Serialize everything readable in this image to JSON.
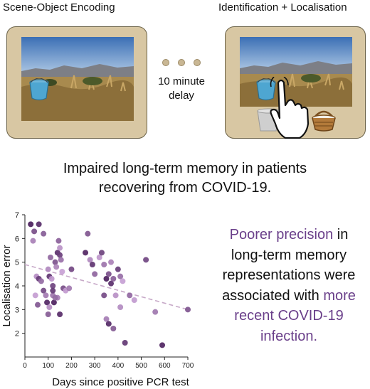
{
  "panels": {
    "left_title": "Scene-Object Encoding",
    "right_title": "Identification + Localisation",
    "delay_line1": "10 minute",
    "delay_line2": "delay"
  },
  "headline": {
    "line1": "Impaired long-term memory in patients",
    "line2": "recovering from COVID-19."
  },
  "summary": {
    "part1": "Poorer precision",
    "part2": " in long-term memory representations were associated with ",
    "part3": "more recent COVID-19 infection."
  },
  "icons": [
    "bucket-icon",
    "hand-pointer-icon",
    "basket-icon",
    "cup-icon"
  ],
  "colors": {
    "highlight": "#6a3f8a",
    "tablet": "#d8c7a3",
    "point_dark": "#4a1e5c",
    "point_light": "#c9a2d6",
    "trend": "#c7a9c8"
  },
  "chart_data": {
    "type": "scatter",
    "xlabel": "Days since positive PCR test",
    "ylabel": "Localisation error",
    "xlim": [
      0,
      700
    ],
    "ylim": [
      1,
      7
    ],
    "xticks": [
      0,
      100,
      200,
      300,
      400,
      500,
      600,
      700
    ],
    "yticks": [
      2,
      3,
      4,
      5,
      6,
      7
    ],
    "trendline": {
      "x": [
        0,
        700
      ],
      "y": [
        4.9,
        3.0
      ]
    },
    "points": [
      {
        "x": 25,
        "y": 6.6
      },
      {
        "x": 40,
        "y": 6.3
      },
      {
        "x": 35,
        "y": 5.9
      },
      {
        "x": 60,
        "y": 6.6
      },
      {
        "x": 80,
        "y": 6.2
      },
      {
        "x": 50,
        "y": 4.4
      },
      {
        "x": 60,
        "y": 4.3
      },
      {
        "x": 70,
        "y": 4.2
      },
      {
        "x": 45,
        "y": 3.6
      },
      {
        "x": 80,
        "y": 3.8
      },
      {
        "x": 90,
        "y": 3.6
      },
      {
        "x": 95,
        "y": 3.3
      },
      {
        "x": 55,
        "y": 3.2
      },
      {
        "x": 100,
        "y": 4.7
      },
      {
        "x": 105,
        "y": 4.4
      },
      {
        "x": 110,
        "y": 5.2
      },
      {
        "x": 115,
        "y": 4.3
      },
      {
        "x": 120,
        "y": 4.0
      },
      {
        "x": 120,
        "y": 3.6
      },
      {
        "x": 125,
        "y": 3.3
      },
      {
        "x": 130,
        "y": 5.0
      },
      {
        "x": 135,
        "y": 4.8
      },
      {
        "x": 140,
        "y": 5.4
      },
      {
        "x": 145,
        "y": 5.9
      },
      {
        "x": 150,
        "y": 5.6
      },
      {
        "x": 150,
        "y": 5.3
      },
      {
        "x": 155,
        "y": 5.1
      },
      {
        "x": 160,
        "y": 4.6
      },
      {
        "x": 165,
        "y": 3.9
      },
      {
        "x": 140,
        "y": 3.5
      },
      {
        "x": 150,
        "y": 2.8
      },
      {
        "x": 100,
        "y": 2.8
      },
      {
        "x": 105,
        "y": 3.1
      },
      {
        "x": 120,
        "y": 3.8
      },
      {
        "x": 130,
        "y": 3.5
      },
      {
        "x": 175,
        "y": 3.8
      },
      {
        "x": 200,
        "y": 4.7
      },
      {
        "x": 190,
        "y": 3.9
      },
      {
        "x": 260,
        "y": 5.4
      },
      {
        "x": 270,
        "y": 6.2
      },
      {
        "x": 280,
        "y": 5.1
      },
      {
        "x": 290,
        "y": 4.9
      },
      {
        "x": 300,
        "y": 4.5
      },
      {
        "x": 320,
        "y": 5.2
      },
      {
        "x": 330,
        "y": 5.4
      },
      {
        "x": 340,
        "y": 4.9
      },
      {
        "x": 350,
        "y": 4.3
      },
      {
        "x": 360,
        "y": 4.5
      },
      {
        "x": 370,
        "y": 5.0
      },
      {
        "x": 370,
        "y": 4.1
      },
      {
        "x": 380,
        "y": 4.3
      },
      {
        "x": 390,
        "y": 3.6
      },
      {
        "x": 400,
        "y": 4.7
      },
      {
        "x": 410,
        "y": 4.4
      },
      {
        "x": 420,
        "y": 4.2
      },
      {
        "x": 340,
        "y": 3.6
      },
      {
        "x": 350,
        "y": 2.6
      },
      {
        "x": 360,
        "y": 2.4
      },
      {
        "x": 380,
        "y": 2.2
      },
      {
        "x": 410,
        "y": 3.1
      },
      {
        "x": 430,
        "y": 1.6
      },
      {
        "x": 450,
        "y": 3.6
      },
      {
        "x": 470,
        "y": 3.4
      },
      {
        "x": 520,
        "y": 5.1
      },
      {
        "x": 560,
        "y": 2.9
      },
      {
        "x": 590,
        "y": 1.5
      },
      {
        "x": 700,
        "y": 3.0
      }
    ]
  }
}
